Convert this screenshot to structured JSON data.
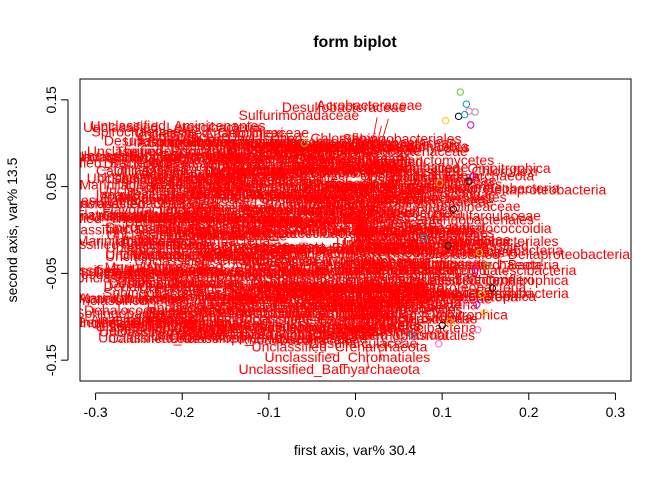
{
  "chart_data": {
    "type": "scatter",
    "title": "form biplot",
    "xlabel": "first axis, var% 30.4",
    "ylabel": "second axis, var% 13.5",
    "xlim": [
      -0.318,
      0.318
    ],
    "ylim": [
      -0.174,
      0.174
    ],
    "x_ticks": [
      -0.3,
      -0.2,
      -0.1,
      0.0,
      0.1,
      0.2,
      0.3
    ],
    "x_tick_labels": [
      "-0.3",
      "-0.2",
      "-0.1",
      "0.0",
      "0.1",
      "0.2",
      "0.3"
    ],
    "y_ticks": [
      -0.15,
      -0.05,
      0.05,
      0.15
    ],
    "y_tick_labels": [
      "-0.15",
      "-0.05",
      "0.05",
      "0.15"
    ],
    "grid": false,
    "label_color": "#ff0000",
    "points": [
      {
        "x": 0.121,
        "y": 0.159,
        "color": "#66cc33"
      },
      {
        "x": 0.128,
        "y": 0.145,
        "color": "#0099cc"
      },
      {
        "x": 0.131,
        "y": 0.137,
        "color": "#ff66cc"
      },
      {
        "x": 0.138,
        "y": 0.136,
        "color": "#999999"
      },
      {
        "x": 0.119,
        "y": 0.131,
        "color": "#000000"
      },
      {
        "x": 0.126,
        "y": 0.133,
        "color": "#00aaaa"
      },
      {
        "x": 0.104,
        "y": 0.126,
        "color": "#ffcc00"
      },
      {
        "x": 0.133,
        "y": 0.121,
        "color": "#cc00cc"
      },
      {
        "x": 0.135,
        "y": 0.061,
        "color": "#cc00cc"
      },
      {
        "x": 0.131,
        "y": 0.056,
        "color": "#000000"
      },
      {
        "x": 0.097,
        "y": 0.054,
        "color": "#ffcc00"
      },
      {
        "x": 0.113,
        "y": 0.024,
        "color": "#000000"
      },
      {
        "x": 0.142,
        "y": 0.002,
        "color": "#999999"
      },
      {
        "x": 0.079,
        "y": -0.009,
        "color": "#0099cc"
      },
      {
        "x": 0.107,
        "y": -0.018,
        "color": "#000000"
      },
      {
        "x": 0.143,
        "y": -0.026,
        "color": "#ffcc00"
      },
      {
        "x": 0.152,
        "y": -0.042,
        "color": "#66cc33"
      },
      {
        "x": 0.138,
        "y": -0.046,
        "color": "#cc00cc"
      },
      {
        "x": 0.13,
        "y": -0.054,
        "color": "#999999"
      },
      {
        "x": 0.158,
        "y": -0.067,
        "color": "#000000"
      },
      {
        "x": 0.146,
        "y": -0.074,
        "color": "#ffcc00"
      },
      {
        "x": 0.128,
        "y": -0.083,
        "color": "#ff66cc"
      },
      {
        "x": 0.14,
        "y": -0.086,
        "color": "#cc00cc"
      },
      {
        "x": 0.149,
        "y": -0.095,
        "color": "#ffcc00"
      },
      {
        "x": 0.109,
        "y": -0.106,
        "color": "#ffcc00"
      },
      {
        "x": 0.1,
        "y": -0.11,
        "color": "#000000"
      },
      {
        "x": 0.141,
        "y": -0.115,
        "color": "#ff66cc"
      },
      {
        "x": 0.065,
        "y": -0.121,
        "color": "#0099cc"
      },
      {
        "x": 0.096,
        "y": -0.131,
        "color": "#ff66cc"
      },
      {
        "x": -0.059,
        "y": 0.1,
        "color": "#66cc33"
      }
    ],
    "annotations": [
      {
        "text": "Acrobacteraceae",
        "x": -0.045,
        "y": 0.138
      },
      {
        "text": "Desulfobacteraceae",
        "x": -0.085,
        "y": 0.136
      },
      {
        "text": "Sulfurimonadaceae",
        "x": -0.135,
        "y": 0.127
      },
      {
        "text": "Thiomicrospiraceae",
        "x": -0.228,
        "y": 0.093
      },
      {
        "text": "Unclassified_SG20",
        "x": -0.1,
        "y": 0.094
      },
      {
        "text": "Unclassified_Rhodospirillales",
        "x": -0.31,
        "y": 0.085
      },
      {
        "text": "Unclassified_Bacteroidetes",
        "x": -0.38,
        "y": 0.072
      },
      {
        "text": "Flavobacteriaceae",
        "x": -0.235,
        "y": 0.076
      },
      {
        "text": "Rhodobacteraceae",
        "x": -0.11,
        "y": 0.084
      },
      {
        "text": "Sphingobacteriales",
        "x": -0.075,
        "y": 0.066
      },
      {
        "text": "Geopsychrobacteraceae",
        "x": -0.255,
        "y": 0.058
      },
      {
        "text": "Unclassified_Gammaproteobacteria",
        "x": -0.265,
        "y": 0.044
      },
      {
        "text": "Halobacteroidaceae",
        "x": -0.18,
        "y": 0.053
      },
      {
        "text": "Ignavibacteriales",
        "x": -0.3,
        "y": 0.035
      },
      {
        "text": "Desulfarculaceae",
        "x": -0.16,
        "y": 0.035
      },
      {
        "text": "Unclassified_Chloroflexi",
        "x": -0.33,
        "y": 0.025
      },
      {
        "text": "Unclassified_Thermoplasmata",
        "x": -0.38,
        "y": 0.008
      },
      {
        "text": "Anaerolineaceae",
        "x": -0.195,
        "y": 0.018
      },
      {
        "text": "Unclassified_Euryarchaeota",
        "x": -0.11,
        "y": 0.03
      },
      {
        "text": "Marinilabiliaceae",
        "x": -0.05,
        "y": 0.016
      },
      {
        "text": "Unclassified_Deltaproteobacteria",
        "x": -0.35,
        "y": -0.005
      },
      {
        "text": "Spirochaetaceae",
        "x": -0.2,
        "y": -0.012
      },
      {
        "text": "Unclassified_Woesearchaeota",
        "x": -0.12,
        "y": -0.005
      },
      {
        "text": "Unclassified_Lokiarchaeota",
        "x": -0.36,
        "y": -0.022
      },
      {
        "text": "Dehalococcoidia",
        "x": -0.18,
        "y": -0.028
      },
      {
        "text": "Caldilineaceae",
        "x": -0.1,
        "y": -0.032
      },
      {
        "text": "Unclassified_Aminicenantes",
        "x": -0.36,
        "y": -0.052
      },
      {
        "text": "Unclassified_Atribacteria",
        "x": -0.24,
        "y": -0.048
      },
      {
        "text": "Desulfobulbaceae",
        "x": -0.285,
        "y": -0.067
      },
      {
        "text": "Unclassified_Planctomycetes",
        "x": -0.25,
        "y": -0.073
      },
      {
        "text": "Unclassified_Omnitrophica",
        "x": -0.09,
        "y": -0.07
      },
      {
        "text": "Unclassified_Latescibacteria",
        "x": -0.02,
        "y": -0.063
      },
      {
        "text": "Unclassified_Acidobacteria",
        "x": -0.07,
        "y": -0.08
      },
      {
        "text": "Unclassified_Alphaproteobacteria",
        "x": -0.215,
        "y": -0.095
      },
      {
        "text": "Unclassified_Cloacimonetes",
        "x": -0.23,
        "y": -0.108
      },
      {
        "text": "Marine_Benthic_Group_B",
        "x": -0.38,
        "y": -0.112
      },
      {
        "text": "Unclassified_Gemmatimonadetes",
        "x": -0.3,
        "y": -0.117
      },
      {
        "text": "Unclassified_Bacteria",
        "x": -0.14,
        "y": -0.108
      },
      {
        "text": "Unclassified_Thermoplasmatales",
        "x": -0.1,
        "y": -0.127
      },
      {
        "text": "Unclassified_Zixibacteria",
        "x": -0.215,
        "y": -0.13
      },
      {
        "text": "Unclassified_Chlorobi",
        "x": -0.05,
        "y": -0.126
      },
      {
        "text": "Unclassified_Crenarchaeota",
        "x": -0.12,
        "y": -0.14
      },
      {
        "text": "Unclassified_Chromatiales",
        "x": -0.105,
        "y": -0.152
      },
      {
        "text": "Unclassified_Bathyarchaeota",
        "x": -0.135,
        "y": -0.166
      }
    ],
    "arrow_origin": [
      0.0,
      0.0
    ],
    "arrows": [
      [
        0.025,
        0.13
      ],
      [
        0.038,
        0.128
      ],
      [
        0.03,
        0.12
      ],
      [
        0.062,
        0.09
      ],
      [
        0.06,
        0.082
      ],
      [
        0.066,
        0.075
      ],
      [
        0.068,
        0.066
      ],
      [
        0.074,
        0.06
      ],
      [
        0.062,
        0.05
      ],
      [
        0.07,
        0.042
      ],
      [
        0.072,
        0.034
      ],
      [
        0.078,
        0.027
      ],
      [
        0.072,
        0.02
      ],
      [
        0.083,
        0.013
      ],
      [
        0.075,
        0.006
      ],
      [
        0.07,
        -0.002
      ],
      [
        0.06,
        -0.008
      ],
      [
        0.072,
        -0.014
      ],
      [
        0.062,
        -0.02
      ],
      [
        0.07,
        -0.028
      ],
      [
        0.065,
        -0.034
      ],
      [
        0.072,
        -0.042
      ],
      [
        0.075,
        -0.048
      ],
      [
        0.068,
        -0.055
      ],
      [
        0.082,
        -0.062
      ],
      [
        0.086,
        -0.07
      ],
      [
        0.09,
        -0.078
      ],
      [
        0.08,
        -0.086
      ],
      [
        0.084,
        -0.094
      ],
      [
        0.078,
        -0.102
      ],
      [
        0.06,
        -0.108
      ],
      [
        0.064,
        -0.114
      ],
      [
        0.055,
        -0.12
      ],
      [
        0.05,
        -0.126
      ],
      [
        0.047,
        -0.133
      ],
      [
        0.035,
        -0.14
      ],
      [
        0.03,
        -0.15
      ],
      [
        0.015,
        -0.16
      ],
      [
        -0.01,
        0.038
      ],
      [
        -0.005,
        -0.04
      ]
    ],
    "fan_labels": [
      "Unclassified",
      "Unclassified_Bacteria",
      "Desulfobacterales",
      "Anaerolineaceae",
      "Unclassified_Chloroflexi",
      "Dehalococcoidia",
      "Spirochaetaceae",
      "Marinilabiliaceae",
      "Unclassified_Deltaproteobacteria",
      "Unclassified_Euryarchaeota",
      "Desulfobulbaceae",
      "Flavobacteriaceae",
      "Unclassified_Atribacteria",
      "Caldilineaceae",
      "Unclassified_Planctomycetes",
      "Unclassified_Aminicenantes",
      "Unclassified_Lokiarchaeota",
      "Unclassified_Woesearchaeota",
      "Thermoplasmata",
      "Bacteroidetes",
      "Rhodobacteraceae",
      "Unclassified_Omnitrophica",
      "Sphingobacteriales",
      "Halobacteroidaceae",
      "Desulfarculaceae",
      "Unclassified_Latescibacteria"
    ]
  }
}
